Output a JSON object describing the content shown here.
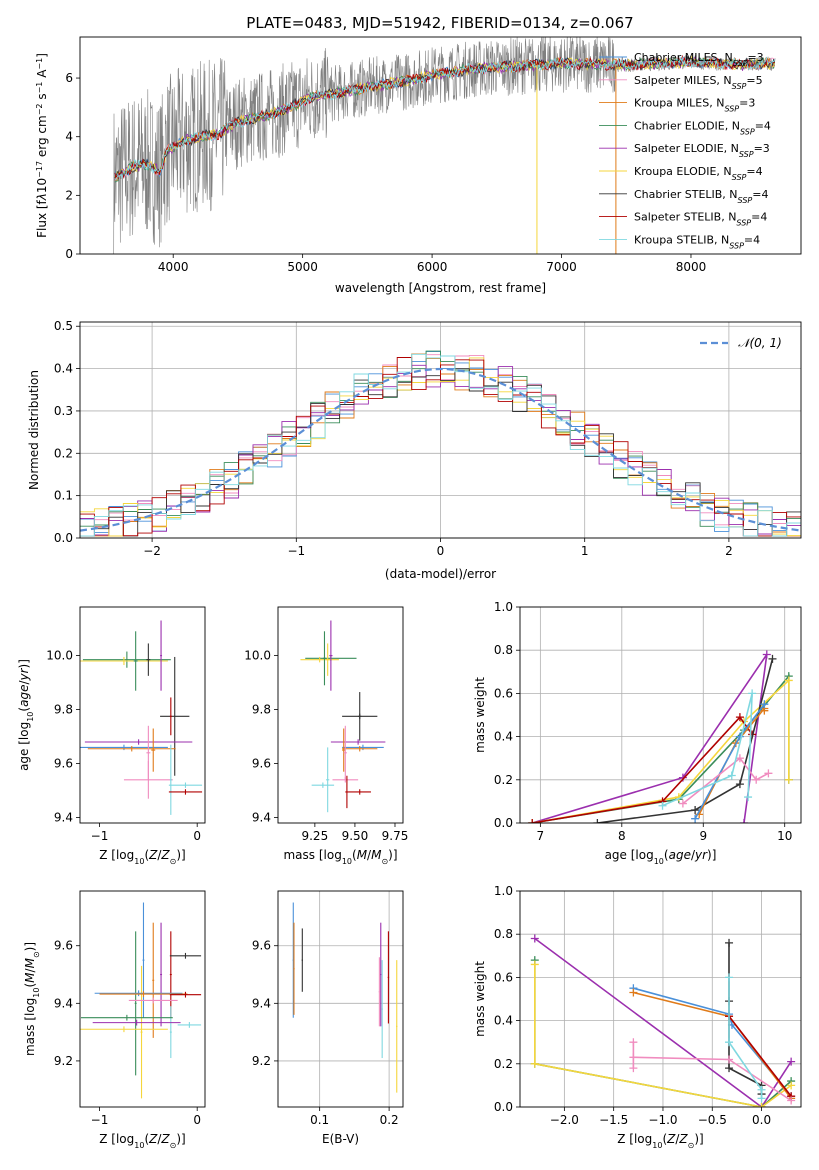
{
  "figure": {
    "title": "PLATE=0483, MJD=51942, FIBERID=0134, z=0.067"
  },
  "colors": {
    "series": [
      "#4a90d9",
      "#f08cbf",
      "#e07b1a",
      "#3a8d5a",
      "#9b2fae",
      "#f5d63c",
      "#333333",
      "#b00000",
      "#7fd8e0"
    ],
    "data": "#808080",
    "gauss": "#5b8fd6",
    "grid": "#b0b0b0"
  },
  "chart_data": [
    {
      "id": "spectrum",
      "type": "line",
      "xlabel": "wavelength [Angstrom, rest frame]",
      "ylabel_html": "Flux [f<tspan font-style='italic'>λ</tspan>10<tspan baseline-shift='super' font-size='8'>−17</tspan> erg cm<tspan baseline-shift='super' font-size='8'>−2</tspan> s<tspan baseline-shift='super' font-size='8'>−1</tspan> A<tspan baseline-shift='super' font-size='8'>−1</tspan>]",
      "xlim": [
        3280,
        8850
      ],
      "ylim": [
        0,
        7.4
      ],
      "xticks": [
        4000,
        5000,
        6000,
        7000,
        8000
      ],
      "yticks": [
        0,
        2,
        4,
        6
      ],
      "legend": {
        "position": "top-right",
        "entries": [
          "Chabrier MILES, N_SSP=3",
          "Salpeter MILES, N_SSP=5",
          "Kroupa MILES, N_SSP=3",
          "Chabrier ELODIE, N_SSP=4",
          "Salpeter ELODIE, N_SSP=3",
          "Kroupa ELODIE, N_SSP=4",
          "Chabrier STELIB, N_SSP=4",
          "Salpeter STELIB, N_SSP=4",
          "Kroupa STELIB, N_SSP=4"
        ]
      },
      "continuum": [
        [
          3550,
          2.6
        ],
        [
          3700,
          3.0
        ],
        [
          3800,
          3.05
        ],
        [
          3900,
          2.8
        ],
        [
          3950,
          3.5
        ],
        [
          4050,
          3.8
        ],
        [
          4200,
          4.0
        ],
        [
          4350,
          4.1
        ],
        [
          4500,
          4.5
        ],
        [
          4700,
          4.7
        ],
        [
          4900,
          5.0
        ],
        [
          5100,
          5.4
        ],
        [
          5300,
          5.5
        ],
        [
          5500,
          5.7
        ],
        [
          5800,
          5.9
        ],
        [
          6000,
          6.1
        ],
        [
          6300,
          6.3
        ],
        [
          6600,
          6.4
        ],
        [
          7000,
          6.5
        ],
        [
          7500,
          6.45
        ],
        [
          8000,
          6.55
        ],
        [
          8400,
          6.45
        ],
        [
          8600,
          6.5
        ]
      ],
      "model_range": [
        3550,
        8650
      ],
      "data_range": [
        3540,
        7420
      ],
      "spikes": [
        [
          6810,
          0
        ],
        [
          7420,
          0
        ]
      ]
    },
    {
      "id": "residuals",
      "type": "bar",
      "xlabel": "(data-model)/error",
      "ylabel": "Normed distribution",
      "xlim": [
        -2.5,
        2.5
      ],
      "ylim": [
        0,
        0.51
      ],
      "xticks": [
        -2,
        -1,
        0,
        1,
        2
      ],
      "yticks": [
        0.0,
        0.1,
        0.2,
        0.3,
        0.4,
        0.5
      ],
      "bin_width": 0.1,
      "legend": {
        "position": "top-right",
        "entries": [
          "𝒩(0, 1)"
        ]
      },
      "gaussian": {
        "mu": 0,
        "sigma": 1
      }
    },
    {
      "id": "age-vs-Z",
      "type": "scatter",
      "xlabel": "Z [log10(Z/Z⊙)]",
      "ylabel": "age [log10(age/yr)]",
      "xlim": [
        -1.2,
        0.08
      ],
      "ylim": [
        9.38,
        10.18
      ],
      "xticks": [
        -1,
        0
      ],
      "yticks": [
        9.4,
        9.6,
        9.8,
        10.0
      ],
      "points": [
        {
          "x": -0.72,
          "xerr": 0.45,
          "y": 9.985,
          "yerr": 0.03,
          "c": 3
        },
        {
          "x": -0.75,
          "xerr": 0.45,
          "y": 9.98,
          "yerr": 0.015,
          "c": 5
        },
        {
          "x": -0.63,
          "xerr": 0.02,
          "y": 9.98,
          "yerr": 0.11,
          "c": 3
        },
        {
          "x": -0.5,
          "xerr": 0.02,
          "y": 9.985,
          "yerr": 0.06,
          "c": 6
        },
        {
          "x": -0.37,
          "xerr": 0.01,
          "y": 10.0,
          "yerr": 0.13,
          "c": 4
        },
        {
          "x": -0.23,
          "xerr": 0.15,
          "y": 9.775,
          "yerr": 0.22,
          "c": 6
        },
        {
          "x": -0.27,
          "xerr": 0.01,
          "y": 9.775,
          "yerr": 0.07,
          "c": 7
        },
        {
          "x": -0.6,
          "xerr": 0.55,
          "y": 9.68,
          "yerr": 0.01,
          "c": 4
        },
        {
          "x": -0.75,
          "xerr": 0.45,
          "y": 9.66,
          "yerr": 0.01,
          "c": 0
        },
        {
          "x": -0.67,
          "xerr": 0.45,
          "y": 9.655,
          "yerr": 0.01,
          "c": 2
        },
        {
          "x": -0.45,
          "xerr": 0.02,
          "y": 9.65,
          "yerr": 0.08,
          "c": 2
        },
        {
          "x": -0.5,
          "xerr": 0.02,
          "y": 9.64,
          "yerr": 0.1,
          "c": 1
        },
        {
          "x": -0.5,
          "xerr": 0.25,
          "y": 9.54,
          "yerr": 0.07,
          "c": 1
        },
        {
          "x": -0.27,
          "xerr": 0.01,
          "y": 9.54,
          "yerr": 0.13,
          "c": 8
        },
        {
          "x": -0.12,
          "xerr": 0.17,
          "y": 9.52,
          "yerr": 0.01,
          "c": 8
        },
        {
          "x": -0.12,
          "xerr": 0.17,
          "y": 9.495,
          "yerr": 0.01,
          "c": 7
        }
      ]
    },
    {
      "id": "age-vs-mass",
      "type": "scatter",
      "xlabel": "mass [log10(M/M⊙)]",
      "ylabel": "",
      "xlim": [
        9.02,
        9.8
      ],
      "ylim": [
        9.38,
        10.18
      ],
      "xticks": [
        9.25,
        9.5,
        9.75
      ],
      "yticks": [
        9.4,
        9.6,
        9.8,
        10.0
      ],
      "points": [
        {
          "x": 9.35,
          "xerr": 0.16,
          "y": 9.99,
          "yerr": 0.01,
          "c": 3
        },
        {
          "x": 9.28,
          "xerr": 0.12,
          "y": 9.985,
          "yerr": 0.01,
          "c": 5
        },
        {
          "x": 9.31,
          "xerr": 0.01,
          "y": 9.99,
          "yerr": 0.1,
          "c": 3
        },
        {
          "x": 9.33,
          "xerr": 0.01,
          "y": 9.985,
          "yerr": 0.06,
          "c": 5
        },
        {
          "x": 9.35,
          "xerr": 0.01,
          "y": 10.0,
          "yerr": 0.13,
          "c": 4
        },
        {
          "x": 9.53,
          "xerr": 0.11,
          "y": 9.775,
          "yerr": 0.01,
          "c": 6
        },
        {
          "x": 9.53,
          "xerr": 0.01,
          "y": 9.775,
          "yerr": 0.09,
          "c": 6
        },
        {
          "x": 9.52,
          "xerr": 0.17,
          "y": 9.68,
          "yerr": 0.01,
          "c": 4
        },
        {
          "x": 9.55,
          "xerr": 0.13,
          "y": 9.66,
          "yerr": 0.01,
          "c": 0
        },
        {
          "x": 9.53,
          "xerr": 0.11,
          "y": 9.655,
          "yerr": 0.01,
          "c": 2
        },
        {
          "x": 9.43,
          "xerr": 0.01,
          "y": 9.65,
          "yerr": 0.08,
          "c": 2
        },
        {
          "x": 9.44,
          "xerr": 0.01,
          "y": 9.64,
          "yerr": 0.1,
          "c": 1
        },
        {
          "x": 9.44,
          "xerr": 0.08,
          "y": 9.54,
          "yerr": 0.01,
          "c": 1
        },
        {
          "x": 9.33,
          "xerr": 0.01,
          "y": 9.54,
          "yerr": 0.12,
          "c": 8
        },
        {
          "x": 9.3,
          "xerr": 0.07,
          "y": 9.52,
          "yerr": 0.01,
          "c": 8
        },
        {
          "x": 9.45,
          "xerr": 0.01,
          "y": 9.495,
          "yerr": 0.06,
          "c": 7
        },
        {
          "x": 9.53,
          "xerr": 0.07,
          "y": 9.495,
          "yerr": 0.01,
          "c": 7
        }
      ]
    },
    {
      "id": "weight-vs-age",
      "type": "line",
      "xlabel": "age [log10(age/yr)]",
      "ylabel": "mass weight",
      "xlim": [
        6.75,
        10.2
      ],
      "ylim": [
        0,
        1.0
      ],
      "xticks": [
        7,
        8,
        9,
        10
      ],
      "yticks": [
        0.0,
        0.2,
        0.4,
        0.6,
        0.8,
        1.0
      ],
      "series": [
        {
          "c": 4,
          "pts": [
            [
              6.9,
              0.0
            ],
            [
              8.75,
              0.21
            ],
            [
              9.78,
              0.78
            ],
            [
              9.5,
              0.0
            ]
          ]
        },
        {
          "c": 3,
          "pts": [
            [
              6.9,
              0.0
            ],
            [
              8.7,
              0.11
            ],
            [
              9.5,
              0.43
            ],
            [
              10.05,
              0.68
            ],
            [
              10.05,
              0.2
            ]
          ]
        },
        {
          "c": 5,
          "pts": [
            [
              6.9,
              0.0
            ],
            [
              8.7,
              0.12
            ],
            [
              9.5,
              0.47
            ],
            [
              10.05,
              0.66
            ],
            [
              10.05,
              0.2
            ]
          ]
        },
        {
          "c": 7,
          "pts": [
            [
              6.9,
              0.0
            ],
            [
              8.5,
              0.1
            ],
            [
              9.45,
              0.49
            ],
            [
              9.6,
              0.41
            ]
          ]
        },
        {
          "c": 6,
          "pts": [
            [
              7.7,
              0.0
            ],
            [
              8.9,
              0.06
            ],
            [
              9.45,
              0.18
            ],
            [
              9.85,
              0.76
            ]
          ]
        },
        {
          "c": 2,
          "pts": [
            [
              8.95,
              0.04
            ],
            [
              9.4,
              0.37
            ],
            [
              9.75,
              0.53
            ],
            [
              9.75,
              0.52
            ]
          ]
        },
        {
          "c": 0,
          "pts": [
            [
              8.9,
              0.02
            ],
            [
              9.45,
              0.4
            ],
            [
              9.75,
              0.55
            ]
          ]
        },
        {
          "c": 1,
          "pts": [
            [
              8.75,
              0.09
            ],
            [
              9.45,
              0.3
            ],
            [
              9.65,
              0.2
            ],
            [
              9.8,
              0.23
            ]
          ]
        },
        {
          "c": 8,
          "pts": [
            [
              8.5,
              0.08
            ],
            [
              9.35,
              0.22
            ],
            [
              9.6,
              0.6
            ],
            [
              9.55,
              0.12
            ]
          ]
        }
      ]
    },
    {
      "id": "mass-vs-Z",
      "type": "scatter",
      "xlabel": "Z [log10(Z/Z⊙)]",
      "ylabel": "mass [log10(M/M⊙)]",
      "xlim": [
        -1.2,
        0.08
      ],
      "ylim": [
        9.04,
        9.79
      ],
      "xticks": [
        -1,
        0
      ],
      "yticks": [
        9.2,
        9.4,
        9.6
      ],
      "points": [
        {
          "x": -0.55,
          "xerr": 0.01,
          "y": 9.55,
          "yerr": 0.2,
          "c": 0
        },
        {
          "x": -0.45,
          "xerr": 0.01,
          "y": 9.48,
          "yerr": 0.2,
          "c": 2
        },
        {
          "x": -0.37,
          "xerr": 0.01,
          "y": 9.5,
          "yerr": 0.18,
          "c": 4
        },
        {
          "x": -0.27,
          "xerr": 0.01,
          "y": 9.5,
          "yerr": 0.15,
          "c": 7
        },
        {
          "x": -0.63,
          "xerr": 0.01,
          "y": 9.4,
          "yerr": 0.25,
          "c": 3
        },
        {
          "x": -0.57,
          "xerr": 0.01,
          "y": 9.3,
          "yerr": 0.23,
          "c": 5
        },
        {
          "x": -0.27,
          "xerr": 0.01,
          "y": 9.3,
          "yerr": 0.09,
          "c": 8
        },
        {
          "x": -0.12,
          "xerr": 0.16,
          "y": 9.565,
          "yerr": 0.01,
          "c": 6
        },
        {
          "x": -0.6,
          "xerr": 0.45,
          "y": 9.435,
          "yerr": 0.01,
          "c": 0
        },
        {
          "x": -0.55,
          "xerr": 0.45,
          "y": 9.432,
          "yerr": 0.01,
          "c": 2
        },
        {
          "x": -0.45,
          "xerr": 0.25,
          "y": 9.41,
          "yerr": 0.01,
          "c": 1
        },
        {
          "x": -0.12,
          "xerr": 0.16,
          "y": 9.43,
          "yerr": 0.01,
          "c": 7
        },
        {
          "x": -0.72,
          "xerr": 0.47,
          "y": 9.35,
          "yerr": 0.01,
          "c": 3
        },
        {
          "x": -0.62,
          "xerr": 0.45,
          "y": 9.333,
          "yerr": 0.01,
          "c": 4
        },
        {
          "x": -0.75,
          "xerr": 0.45,
          "y": 9.31,
          "yerr": 0.01,
          "c": 5
        },
        {
          "x": -0.08,
          "xerr": 0.12,
          "y": 9.325,
          "yerr": 0.01,
          "c": 8
        }
      ]
    },
    {
      "id": "mass-vs-EBV",
      "type": "scatter",
      "xlabel": "E(B-V)",
      "ylabel": "",
      "xlim": [
        0.04,
        0.22
      ],
      "ylim": [
        9.04,
        9.79
      ],
      "xticks": [
        0.1,
        0.2
      ],
      "yticks": [
        9.2,
        9.4,
        9.6
      ],
      "points": [
        {
          "x": 0.062,
          "xerr": 0.001,
          "y": 9.55,
          "yerr": 0.2,
          "c": 0
        },
        {
          "x": 0.063,
          "xerr": 0.001,
          "y": 9.52,
          "yerr": 0.16,
          "c": 2
        },
        {
          "x": 0.075,
          "xerr": 0.001,
          "y": 9.55,
          "yerr": 0.11,
          "c": 6
        },
        {
          "x": 0.186,
          "xerr": 0.001,
          "y": 9.44,
          "yerr": 0.12,
          "c": 1
        },
        {
          "x": 0.188,
          "xerr": 0.001,
          "y": 9.5,
          "yerr": 0.18,
          "c": 4
        },
        {
          "x": 0.19,
          "xerr": 0.001,
          "y": 9.38,
          "yerr": 0.17,
          "c": 8
        },
        {
          "x": 0.199,
          "xerr": 0.001,
          "y": 9.49,
          "yerr": 0.16,
          "c": 7
        },
        {
          "x": 0.211,
          "xerr": 0.001,
          "y": 9.32,
          "yerr": 0.23,
          "c": 5
        }
      ]
    },
    {
      "id": "weight-vs-Z",
      "type": "line",
      "xlabel": "Z [log10(Z/Z⊙)]",
      "ylabel": "mass weight",
      "xlim": [
        -2.45,
        0.4
      ],
      "ylim": [
        0,
        1.0
      ],
      "xticks": [
        -2.0,
        -1.5,
        -1.0,
        -0.5,
        0.0
      ],
      "yticks": [
        0.0,
        0.2,
        0.4,
        0.6,
        0.8,
        1.0
      ],
      "series": [
        {
          "c": 4,
          "pts": [
            [
              -2.3,
              0.78
            ],
            [
              0.0,
              0.0
            ],
            [
              0.3,
              0.21
            ]
          ]
        },
        {
          "c": 3,
          "pts": [
            [
              -2.3,
              0.68
            ],
            [
              -2.3,
              0.2
            ],
            [
              0.0,
              0.0
            ],
            [
              0.3,
              0.12
            ]
          ]
        },
        {
          "c": 5,
          "pts": [
            [
              -2.3,
              0.66
            ],
            [
              -2.3,
              0.2
            ],
            [
              0.0,
              0.0
            ],
            [
              0.3,
              0.1
            ]
          ]
        },
        {
          "c": 0,
          "pts": [
            [
              -1.3,
              0.55
            ],
            [
              -0.33,
              0.43
            ],
            [
              -0.3,
              0.38
            ],
            [
              0.3,
              0.05
            ]
          ]
        },
        {
          "c": 2,
          "pts": [
            [
              -1.3,
              0.53
            ],
            [
              -0.33,
              0.42
            ],
            [
              0.3,
              0.04
            ]
          ]
        },
        {
          "c": 7,
          "pts": [
            [
              -0.33,
              0.42
            ],
            [
              0.3,
              0.05
            ]
          ]
        },
        {
          "c": 6,
          "pts": [
            [
              -0.33,
              0.76
            ],
            [
              -0.33,
              0.49
            ],
            [
              -0.33,
              0.18
            ],
            [
              0.0,
              0.1
            ],
            [
              0.0,
              0.06
            ]
          ]
        },
        {
          "c": 1,
          "pts": [
            [
              -1.3,
              0.3
            ],
            [
              -1.3,
              0.18
            ],
            [
              -1.3,
              0.23
            ],
            [
              -0.33,
              0.22
            ],
            [
              0.3,
              0.03
            ]
          ]
        },
        {
          "c": 8,
          "pts": [
            [
              -0.33,
              0.6
            ],
            [
              -0.33,
              0.3
            ],
            [
              0.0,
              0.08
            ],
            [
              0.0,
              0.04
            ]
          ]
        }
      ]
    }
  ]
}
